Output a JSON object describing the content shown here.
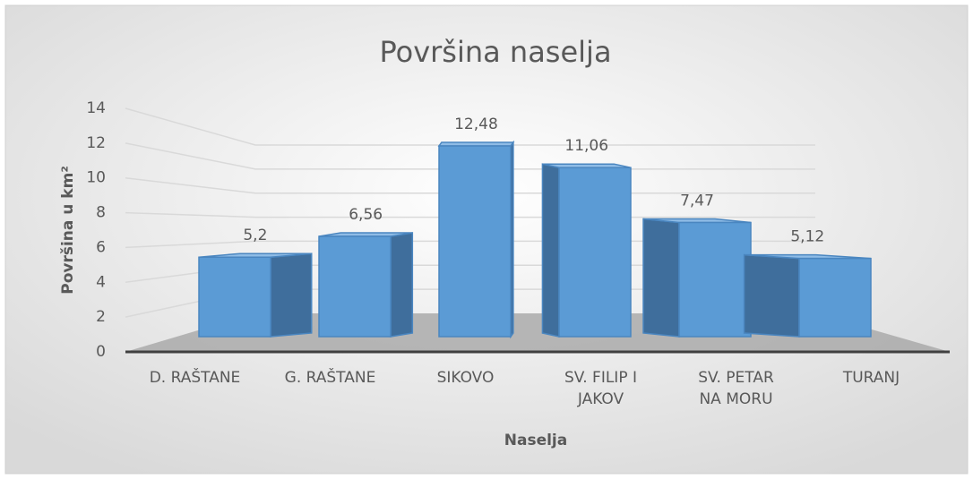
{
  "chart_data": {
    "type": "bar3d",
    "title": "Površina naselja",
    "x_label": "Naselja",
    "y_label": "Površina u km²",
    "categories": [
      "D. RAŠTANE",
      "G. RAŠTANE",
      "SIKOVO",
      "SV. FILIP I JAKOV",
      "SV. PETAR NA MORU",
      "TURANJ"
    ],
    "values": [
      5.2,
      6.56,
      12.48,
      11.06,
      7.47,
      5.12
    ],
    "value_labels": [
      "5,2",
      "6,56",
      "12,48",
      "11,06",
      "7,47",
      "5,12"
    ],
    "color": "#5b9bd5",
    "ylim": [
      0,
      14
    ],
    "yticks": [
      0,
      2,
      4,
      6,
      8,
      10,
      12,
      14
    ],
    "grid": true
  }
}
